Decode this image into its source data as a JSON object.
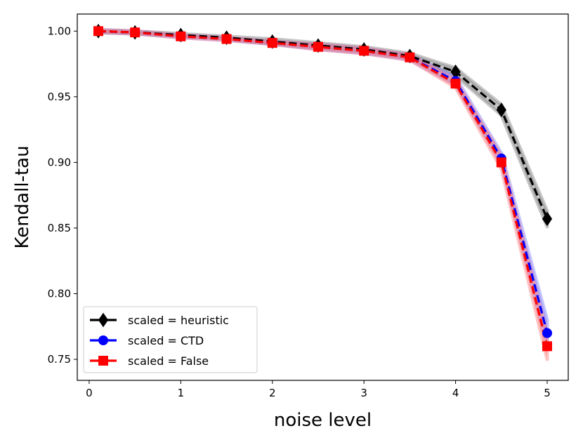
{
  "chart_data": {
    "type": "line",
    "title": "",
    "xlabel": "noise level",
    "ylabel": "Kendall-tau",
    "xlim": [
      -0.13,
      5.23
    ],
    "ylim": [
      0.734,
      1.013
    ],
    "xticks": [
      0,
      1,
      2,
      3,
      4,
      5
    ],
    "xtick_labels": [
      "0",
      "1",
      "2",
      "3",
      "4",
      "5"
    ],
    "yticks": [
      0.75,
      0.8,
      0.85,
      0.9,
      0.95,
      1.0
    ],
    "ytick_labels": [
      "0.75",
      "0.80",
      "0.85",
      "0.90",
      "0.95",
      "1.00"
    ],
    "grid": false,
    "legend_position": "lower-left",
    "x": [
      0.1,
      0.5,
      1.0,
      1.5,
      2.0,
      2.5,
      3.0,
      3.5,
      4.0,
      4.5,
      5.0
    ],
    "series": [
      {
        "name": "scaled = heuristic",
        "color": "#000000",
        "band_color": "#808080",
        "marker": "diamond",
        "values": [
          1.0,
          0.999,
          0.997,
          0.995,
          0.992,
          0.989,
          0.986,
          0.981,
          0.969,
          0.94,
          0.857
        ],
        "band": [
          0.001,
          0.001,
          0.001,
          0.001,
          0.002,
          0.002,
          0.002,
          0.002,
          0.003,
          0.004,
          0.006
        ]
      },
      {
        "name": "scaled = CTD",
        "color": "#0000ff",
        "band_color": "#8080ff",
        "marker": "circle",
        "values": [
          1.0,
          0.999,
          0.996,
          0.994,
          0.991,
          0.988,
          0.985,
          0.98,
          0.962,
          0.903,
          0.77
        ],
        "band": [
          0.001,
          0.001,
          0.001,
          0.001,
          0.001,
          0.002,
          0.002,
          0.002,
          0.003,
          0.004,
          0.01
        ]
      },
      {
        "name": "scaled = False",
        "color": "#ff0000",
        "band_color": "#ff8080",
        "marker": "square",
        "values": [
          1.0,
          0.999,
          0.996,
          0.994,
          0.991,
          0.988,
          0.985,
          0.98,
          0.96,
          0.9,
          0.76
        ],
        "band": [
          0.001,
          0.001,
          0.001,
          0.001,
          0.001,
          0.002,
          0.002,
          0.002,
          0.003,
          0.005,
          0.01
        ]
      }
    ]
  }
}
